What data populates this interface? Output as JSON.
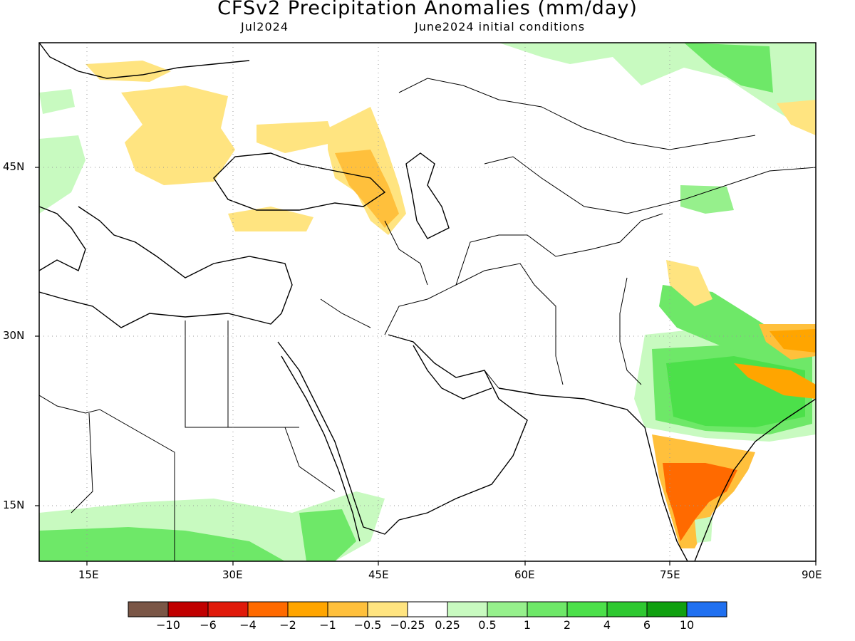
{
  "title": "CFSv2 Precipitation Anomalies (mm/day)",
  "valid_month": "Jul2024",
  "initial_conditions": "June2024 initial conditions",
  "lat_ticks": [
    "45N",
    "30N",
    "15N"
  ],
  "lon_ticks": [
    "15E",
    "30E",
    "45E",
    "60E",
    "75E",
    "90E"
  ],
  "colorbar": {
    "colors": [
      "#7a5646",
      "#c00000",
      "#e01a0a",
      "#ff6a00",
      "#ffa500",
      "#ffc03c",
      "#ffe480",
      "#ffffff",
      "#c8fac0",
      "#96f08c",
      "#6ee868",
      "#4ce04a",
      "#2ec830",
      "#10a010",
      "#2070f0"
    ],
    "labels": [
      "−10",
      "−6",
      "−4",
      "−2",
      "−1",
      "−0.5",
      "−0.25",
      "0.25",
      "0.5",
      "1",
      "2",
      "4",
      "6",
      "10"
    ]
  },
  "colors": {
    "wet_light": "#c8fac0",
    "wet_mid": "#96f08c",
    "wet": "#6ee868",
    "wet_strong": "#4ce04a",
    "dry_light": "#ffe480",
    "dry": "#ffc03c",
    "dry_mid": "#ffa500",
    "dry_strong": "#ff6a00"
  }
}
